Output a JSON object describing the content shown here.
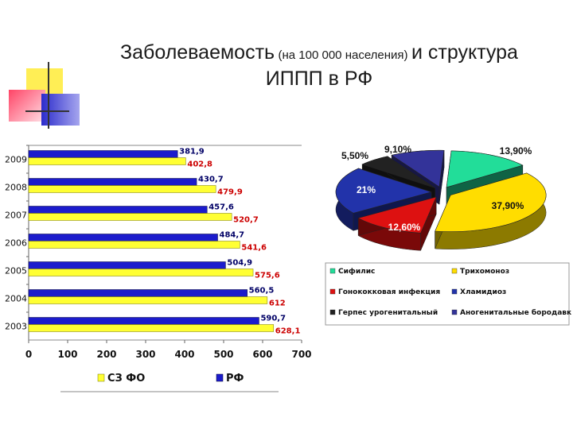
{
  "title": {
    "part1": "Заболеваемость",
    "part2": "(на 100 000 населения)",
    "part3": "и структура",
    "line2": "ИППП в РФ"
  },
  "colors": {
    "szfo": "#ffff33",
    "rf": "#1c1ccc",
    "rf_label": "#000066",
    "szfo_label": "#cc0000"
  },
  "chart_data": [
    {
      "type": "bar",
      "orientation": "horizontal",
      "categories": [
        "2009",
        "2008",
        "2007",
        "2006",
        "2005",
        "2004",
        "2003"
      ],
      "series": [
        {
          "name": "СЗ ФО",
          "values": [
            402.8,
            479.9,
            520.7,
            541.6,
            575.6,
            612,
            628.1
          ],
          "labels": [
            "402,8",
            "479,9",
            "520,7",
            "541,6",
            "575,6",
            "612",
            "628,1"
          ]
        },
        {
          "name": "РФ",
          "values": [
            381.9,
            430.7,
            457.6,
            484.7,
            504.9,
            560.5,
            590.7
          ],
          "labels": [
            "381,9",
            "430,7",
            "457,6",
            "484,7",
            "504,9",
            "560,5",
            "590,7"
          ]
        }
      ],
      "xlim": [
        0,
        700
      ],
      "xticks": [
        "0",
        "100",
        "200",
        "300",
        "400",
        "500",
        "600",
        "700"
      ],
      "legend": "bottom"
    },
    {
      "type": "pie",
      "style": "3d-exploded",
      "slices": [
        {
          "name": "Сифилис",
          "value": 13.9,
          "label": "13,90%",
          "color": "#22dd99"
        },
        {
          "name": "Трихомоноз",
          "value": 37.9,
          "label": "37,90%",
          "color": "#ffdd00"
        },
        {
          "name": "Гонококковая инфекция",
          "value": 12.6,
          "label": "12,60%",
          "color": "#dd1111"
        },
        {
          "name": "Хламидиоз",
          "value": 21,
          "label": "21%",
          "color": "#2233aa"
        },
        {
          "name": "Герпес урогенитальный",
          "value": 5.5,
          "label": "5,50%",
          "color": "#222222"
        },
        {
          "name": "Аногенитальные бородавки",
          "value": 9.1,
          "label": "9,10%",
          "color": "#333399"
        }
      ],
      "legend": "bottom"
    }
  ]
}
